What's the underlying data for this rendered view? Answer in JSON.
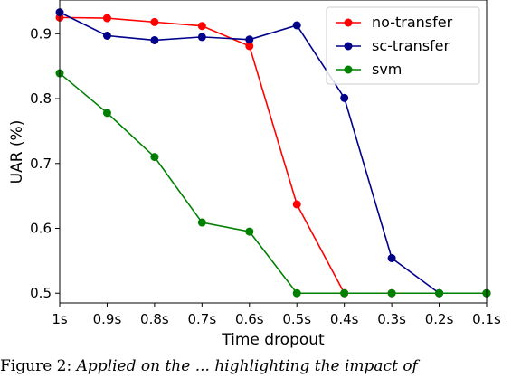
{
  "chart_data": {
    "type": "line",
    "title": "",
    "xlabel": "Time dropout",
    "ylabel": "UAR (%)",
    "categories": [
      "1s",
      "0.9s",
      "0.8s",
      "0.7s",
      "0.6s",
      "0.5s",
      "0.4s",
      "0.3s",
      "0.2s",
      "0.1s"
    ],
    "ylim": [
      0.485,
      0.952
    ],
    "yticks": [
      "0.5",
      "0.6",
      "0.7",
      "0.8",
      "0.9"
    ],
    "grid": false,
    "legend_position": "top-right",
    "series": [
      {
        "name": "no-transfer",
        "color": "#ff0000",
        "values": [
          0.925,
          0.924,
          0.918,
          0.912,
          0.881,
          0.637,
          0.5,
          0.5,
          0.5,
          0.5
        ]
      },
      {
        "name": "sc-transfer",
        "color": "#00008b",
        "values": [
          0.933,
          0.897,
          0.89,
          0.895,
          0.891,
          0.913,
          0.801,
          0.554,
          0.5,
          0.5
        ]
      },
      {
        "name": "svm",
        "color": "#008000",
        "values": [
          0.839,
          0.778,
          0.71,
          0.609,
          0.595,
          0.5,
          0.5,
          0.5,
          0.5,
          0.5
        ]
      }
    ]
  },
  "caption": {
    "prefix": "Figure 2:",
    "text": "Applied on the ... highlighting the impact of"
  }
}
